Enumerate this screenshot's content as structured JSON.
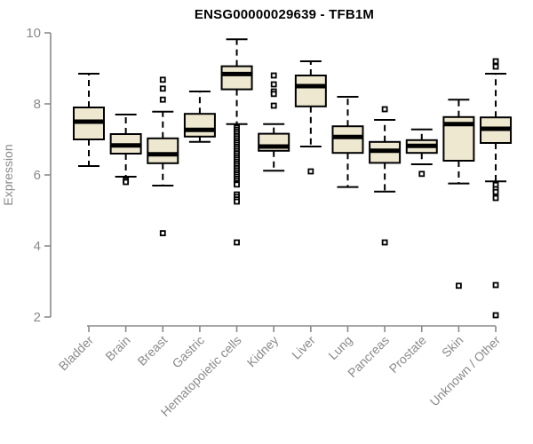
{
  "chart_data": {
    "type": "box",
    "title": "ENSG00000029639 - TFB1M",
    "ylabel": "Expression",
    "ylim": [
      1.9,
      10.1
    ],
    "yticks": [
      2,
      4,
      6,
      8,
      10
    ],
    "grid": false,
    "legend": "none",
    "box_fill": "#EEE8D0",
    "box_stroke": "#000000",
    "median_color": "#000000",
    "axis_color": "#8a8a8a",
    "title_color": "#000000",
    "categories": [
      "Bladder",
      "Brain",
      "Breast",
      "Gastric",
      "Hematopoietic cells",
      "Kidney",
      "Liver",
      "Lung",
      "Pancreas",
      "Prostate",
      "Skin",
      "Unknown / Other"
    ],
    "boxes": [
      {
        "name": "Bladder",
        "whisker_low": 6.25,
        "q1": 7.0,
        "median": 7.5,
        "q3": 7.9,
        "whisker_high": 8.85,
        "outliers": []
      },
      {
        "name": "Brain",
        "whisker_low": 5.95,
        "q1": 6.6,
        "median": 6.83,
        "q3": 7.15,
        "whisker_high": 7.7,
        "outliers": [
          5.85,
          5.8
        ]
      },
      {
        "name": "Breast",
        "whisker_low": 5.7,
        "q1": 6.33,
        "median": 6.58,
        "q3": 7.03,
        "whisker_high": 7.78,
        "outliers": [
          8.68,
          8.43,
          8.12,
          4.36
        ]
      },
      {
        "name": "Gastric",
        "whisker_low": 6.93,
        "q1": 7.08,
        "median": 7.27,
        "q3": 7.72,
        "whisker_high": 8.35,
        "outliers": []
      },
      {
        "name": "Hematopoietic cells",
        "whisker_low": 7.43,
        "q1": 8.41,
        "median": 8.84,
        "q3": 9.06,
        "whisker_high": 9.82,
        "outliers": [
          7.33,
          7.27,
          7.21,
          7.15,
          7.09,
          7.03,
          6.97,
          6.91,
          6.85,
          6.79,
          6.73,
          6.67,
          6.61,
          6.55,
          6.49,
          6.43,
          6.37,
          6.31,
          6.25,
          6.19,
          6.13,
          6.07,
          6.01,
          5.95,
          5.89,
          5.83,
          5.77,
          5.73,
          5.45,
          5.38,
          5.31,
          5.25,
          4.1
        ]
      },
      {
        "name": "Kidney",
        "whisker_low": 6.12,
        "q1": 6.68,
        "median": 6.8,
        "q3": 7.16,
        "whisker_high": 7.43,
        "outliers": [
          8.8,
          8.55,
          8.35,
          8.28,
          7.95
        ]
      },
      {
        "name": "Liver",
        "whisker_low": 6.8,
        "q1": 7.93,
        "median": 8.5,
        "q3": 8.8,
        "whisker_high": 9.2,
        "outliers": [
          6.1
        ]
      },
      {
        "name": "Lung",
        "whisker_low": 5.66,
        "q1": 6.62,
        "median": 7.07,
        "q3": 7.37,
        "whisker_high": 8.2,
        "outliers": []
      },
      {
        "name": "Pancreas",
        "whisker_low": 5.53,
        "q1": 6.34,
        "median": 6.68,
        "q3": 6.93,
        "whisker_high": 7.55,
        "outliers": [
          7.85,
          4.1
        ]
      },
      {
        "name": "Prostate",
        "whisker_low": 6.3,
        "q1": 6.62,
        "median": 6.82,
        "q3": 6.98,
        "whisker_high": 7.28,
        "outliers": [
          6.03
        ]
      },
      {
        "name": "Skin",
        "whisker_low": 5.76,
        "q1": 6.4,
        "median": 7.43,
        "q3": 7.63,
        "whisker_high": 8.12,
        "outliers": [
          2.88
        ]
      },
      {
        "name": "Unknown / Other",
        "whisker_low": 5.82,
        "q1": 6.9,
        "median": 7.3,
        "q3": 7.62,
        "whisker_high": 8.85,
        "outliers": [
          9.2,
          9.05,
          5.72,
          5.6,
          5.52,
          5.35,
          2.9,
          2.05
        ]
      }
    ]
  }
}
